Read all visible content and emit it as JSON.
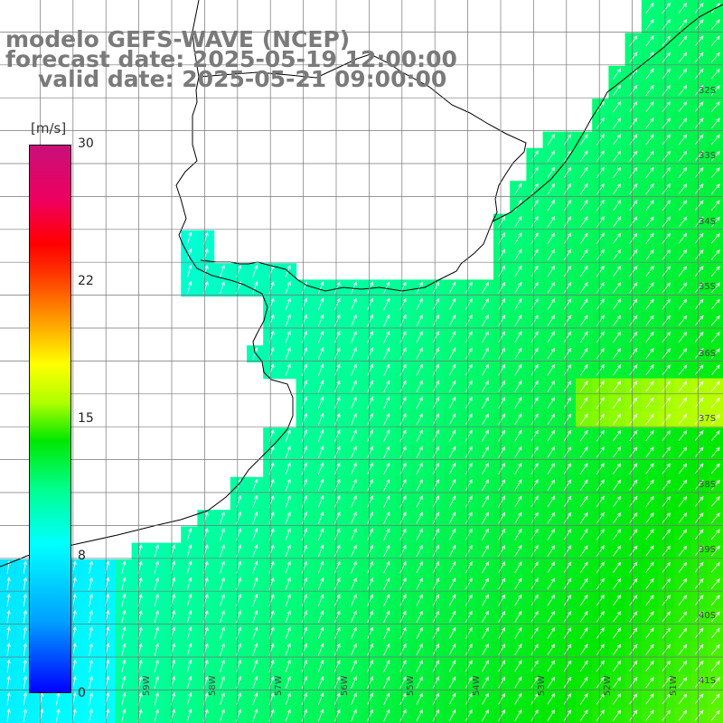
{
  "title": {
    "line1": "modelo GEFS-WAVE (NCEP)",
    "line2": "forecast date: 2025-05-19 12:00:00",
    "line3": "valid date: 2025-05-21 09:00:00"
  },
  "colorbar": {
    "unit": "[m/s]",
    "min": 0,
    "max": 30,
    "ticks": [
      "30",
      "22",
      "15",
      "8",
      "0"
    ]
  },
  "grid": {
    "lat_labels": [
      "32S",
      "33S",
      "34S",
      "35S",
      "36S",
      "37S",
      "38S",
      "39S",
      "40S",
      "41S"
    ],
    "lon_labels": [
      "59W",
      "58W",
      "57W",
      "56W",
      "55W",
      "54W",
      "53W",
      "52W",
      "51W"
    ]
  },
  "colors": {
    "land": "#ffffff",
    "coast": "#000000",
    "grid": "#777777",
    "arrows": "#ffffff",
    "title": "#7a7a7a"
  }
}
